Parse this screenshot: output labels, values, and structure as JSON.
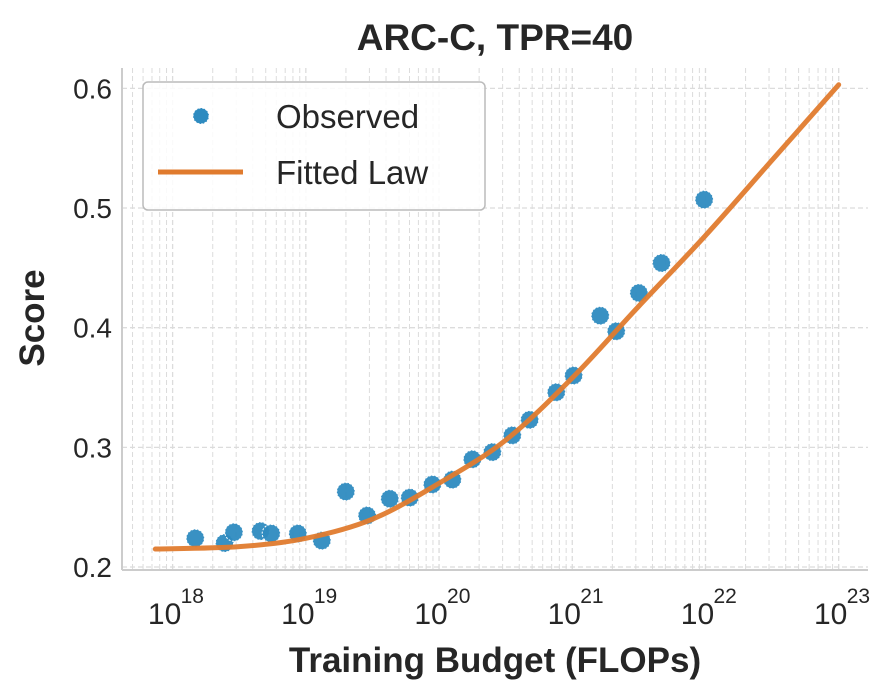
{
  "chart_data": {
    "type": "scatter",
    "title": "ARC-C, TPR=40",
    "xlabel": "Training Budget (FLOPs)",
    "ylabel": "Score",
    "x_scale": "log",
    "xlim_log10": [
      17.62,
      23.22
    ],
    "ylim": [
      0.1975,
      0.617
    ],
    "x_ticks": [
      18,
      19,
      20,
      21,
      22,
      23
    ],
    "x_tick_base": "10",
    "y_ticks": [
      0.2,
      0.3,
      0.4,
      0.5,
      0.6
    ],
    "y_tick_labels": [
      "0.2",
      "0.3",
      "0.4",
      "0.5",
      "0.6"
    ],
    "grid": true,
    "legend_placement": "top-left",
    "series": [
      {
        "name": "Observed",
        "kind": "scatter",
        "color": "#2e8bc0",
        "points_log10x": [
          [
            18.17,
            0.224
          ],
          [
            18.39,
            0.22
          ],
          [
            18.46,
            0.229
          ],
          [
            18.66,
            0.23
          ],
          [
            18.74,
            0.228
          ],
          [
            18.94,
            0.228
          ],
          [
            19.12,
            0.222
          ],
          [
            19.3,
            0.263
          ],
          [
            19.46,
            0.243
          ],
          [
            19.63,
            0.257
          ],
          [
            19.78,
            0.258
          ],
          [
            19.95,
            0.269
          ],
          [
            20.1,
            0.273
          ],
          [
            20.25,
            0.29
          ],
          [
            20.4,
            0.296
          ],
          [
            20.55,
            0.31
          ],
          [
            20.68,
            0.323
          ],
          [
            20.88,
            0.346
          ],
          [
            21.01,
            0.36
          ],
          [
            21.21,
            0.41
          ],
          [
            21.33,
            0.397
          ],
          [
            21.5,
            0.429
          ],
          [
            21.67,
            0.454
          ],
          [
            21.99,
            0.507
          ]
        ]
      },
      {
        "name": "Fitted Law",
        "kind": "line",
        "color": "#e07b2e",
        "points_log10x": [
          [
            17.87,
            0.215
          ],
          [
            18.5,
            0.217
          ],
          [
            19.0,
            0.224
          ],
          [
            19.5,
            0.24
          ],
          [
            20.0,
            0.27
          ],
          [
            20.5,
            0.306
          ],
          [
            21.0,
            0.358
          ],
          [
            21.5,
            0.418
          ],
          [
            22.0,
            0.477
          ],
          [
            22.5,
            0.54
          ],
          [
            23.0,
            0.603
          ]
        ]
      }
    ]
  }
}
